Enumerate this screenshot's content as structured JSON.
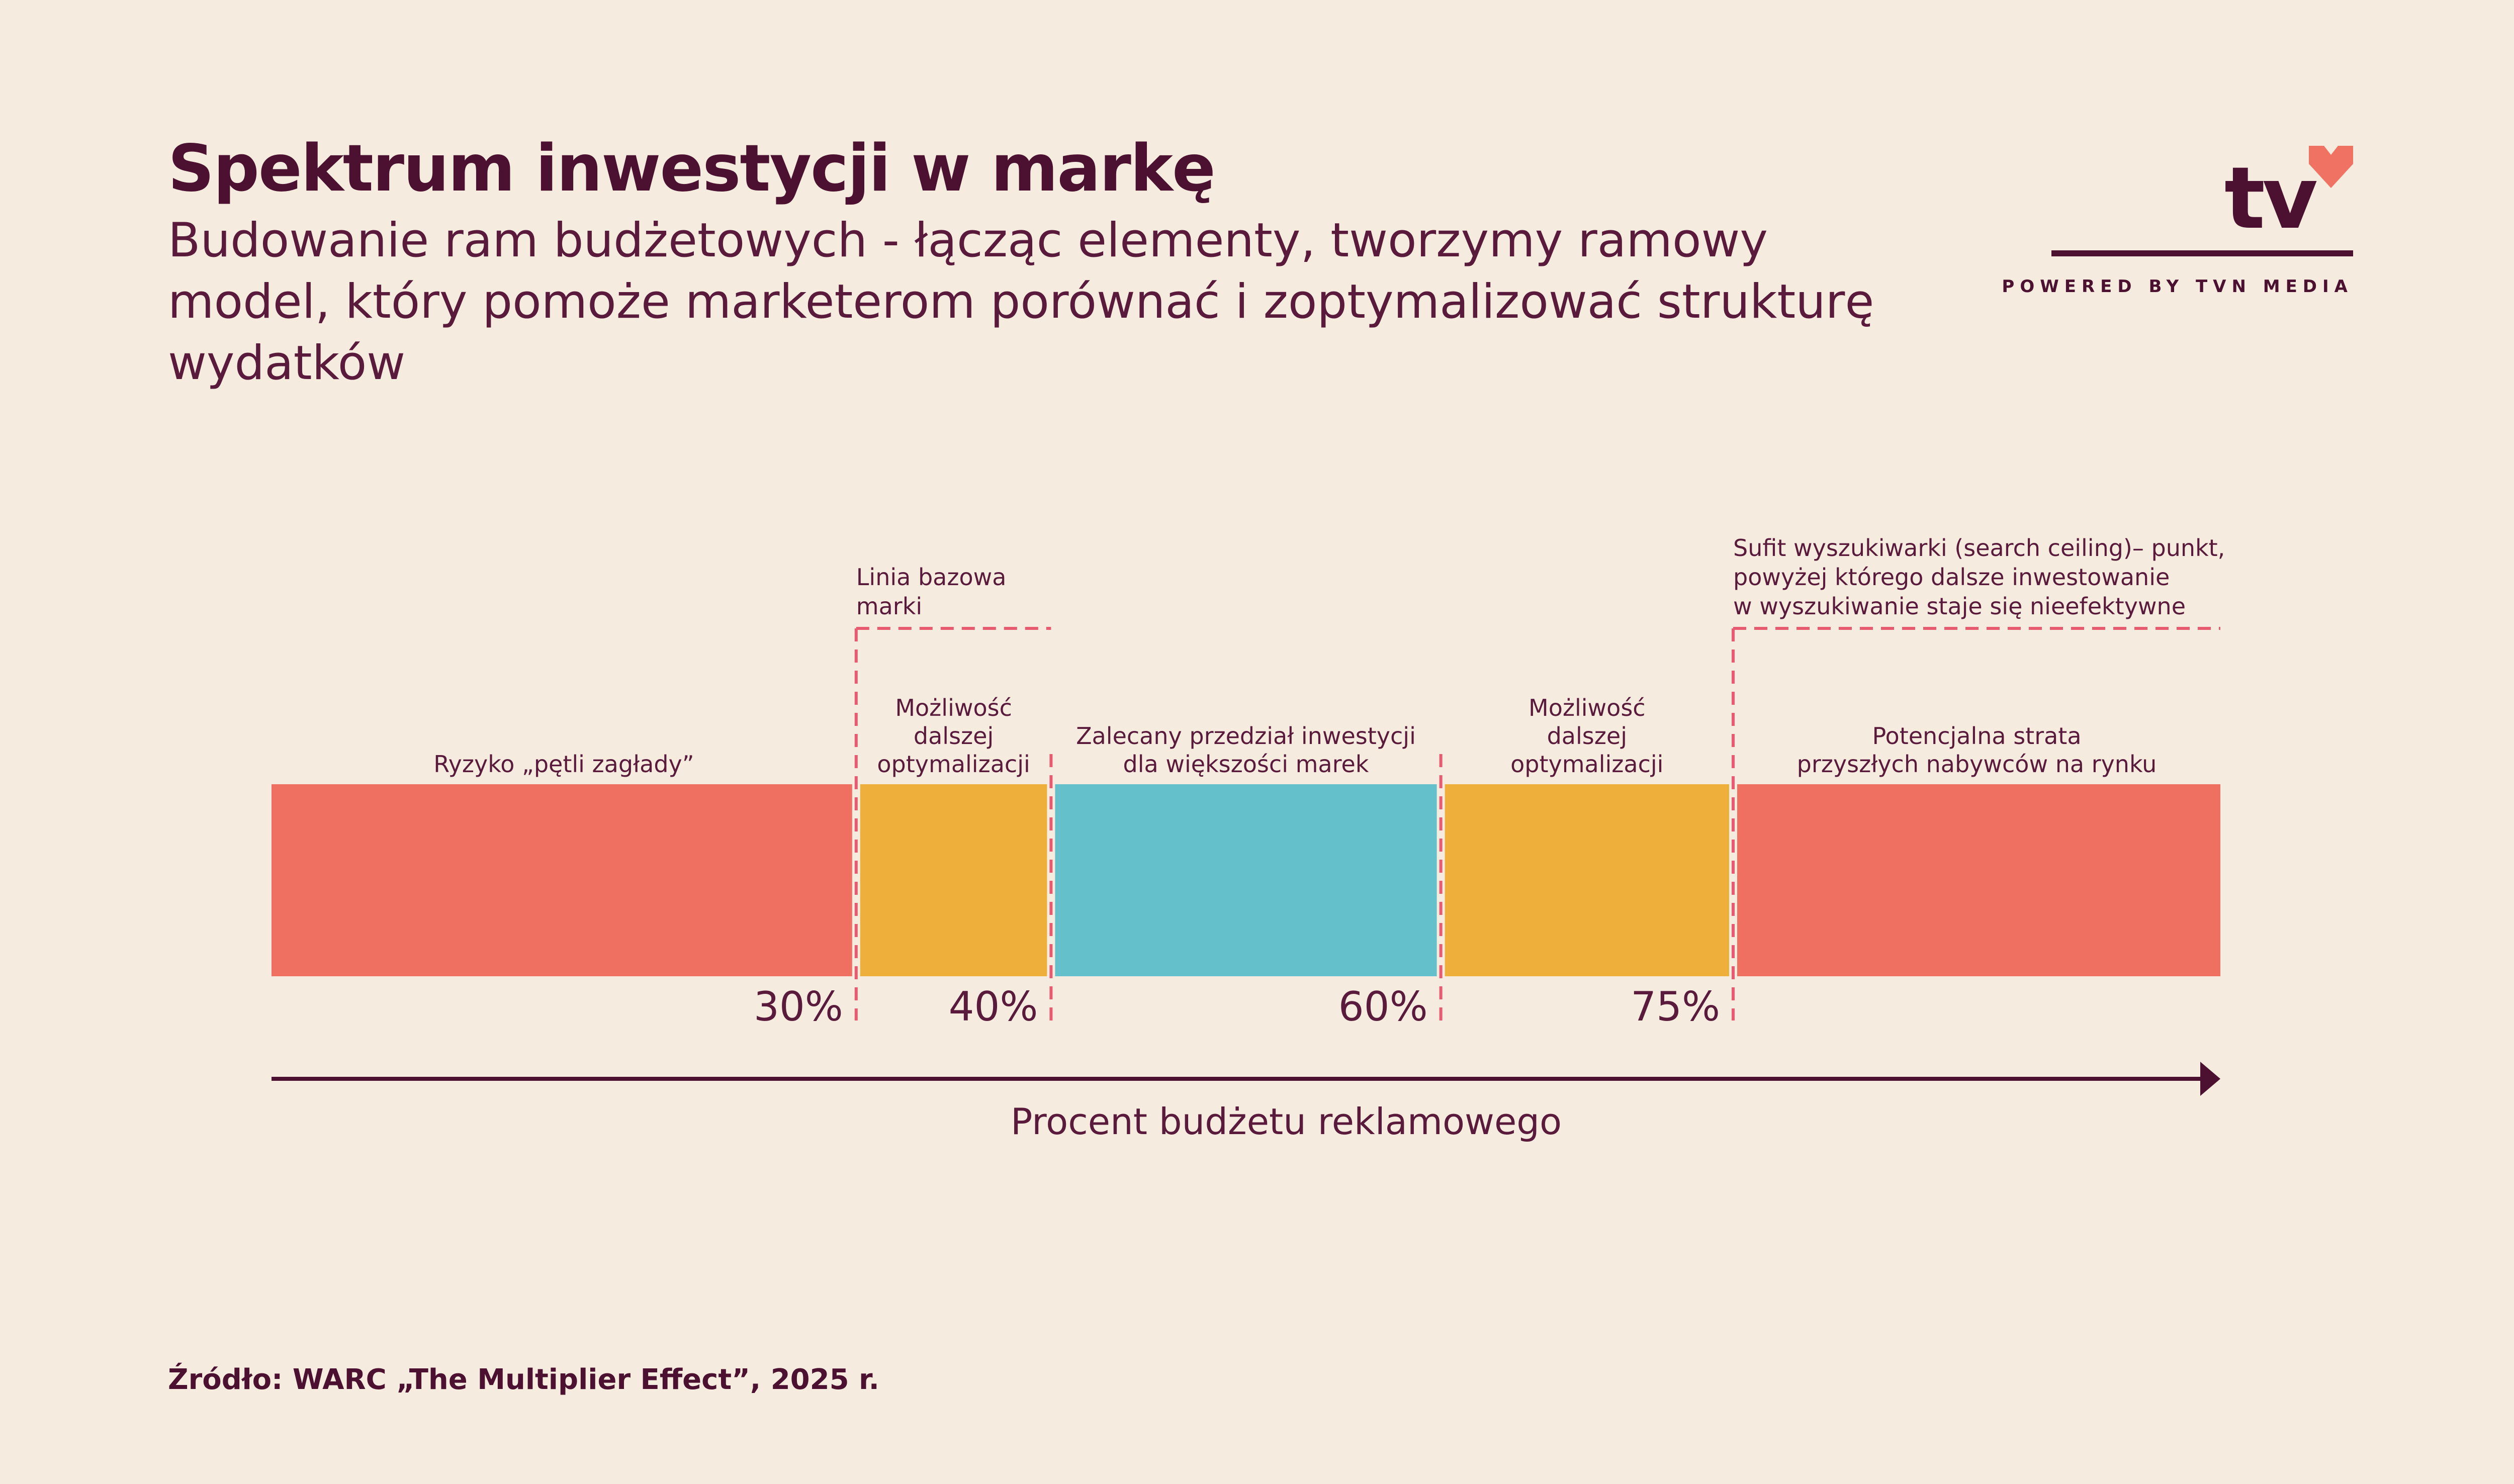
{
  "header": {
    "title": "Spektrum inwestycji w markę",
    "subtitle": "Budowanie ram budżetowych - łącząc elementy, tworzymy ramowy model, który pomoże marketerom porównać i zoptymalizować strukturę wydatków"
  },
  "logo": {
    "text": "tv",
    "tagline": "POWERED BY TVN MEDIA",
    "heart_color": "#f07263"
  },
  "chart_data": {
    "type": "bar",
    "orientation": "horizontal-segmented",
    "xlabel": "Procent budżetu reklamowego",
    "ticks": [
      {
        "value": 30,
        "label": "30%"
      },
      {
        "value": 40,
        "label": "40%"
      },
      {
        "value": 60,
        "label": "60%"
      },
      {
        "value": 75,
        "label": "75%"
      }
    ],
    "segments": [
      {
        "start": 0,
        "end": 30,
        "label": [
          "Ryzyko „pętli zagłady”"
        ],
        "color": "#ef6f61"
      },
      {
        "start": 30,
        "end": 40,
        "label": [
          "Możliwość",
          "dalszej",
          "optymalizacji"
        ],
        "color": "#eeb03b"
      },
      {
        "start": 40,
        "end": 60,
        "label": [
          "Zalecany przedział inwestycji",
          "dla większości marek"
        ],
        "color": "#64c1cb"
      },
      {
        "start": 60,
        "end": 75,
        "label": [
          "Możliwość",
          "dalszej",
          "optymalizacji"
        ],
        "color": "#eeb03b"
      },
      {
        "start": 75,
        "end": 100,
        "label": [
          "Potencjalna strata",
          "przyszłych nabywców na rynku"
        ],
        "color": "#ef6f61"
      }
    ],
    "annotations": [
      {
        "start": 30,
        "end": 40,
        "text": [
          "Linia bazowa",
          "marki"
        ]
      },
      {
        "start": 75,
        "end": 100,
        "text": [
          "Sufit wyszukiwarki (search ceiling)– punkt,",
          "powyżej którego dalsze inwestowanie",
          "w wyszukiwanie staje się nieefektywne"
        ]
      }
    ],
    "dashed_lines_at": [
      30,
      40,
      60,
      75
    ],
    "dashed_color": "#e85a6f"
  },
  "footer": {
    "source": "Źródło: WARC „The Multiplier Effect”, 2025 r."
  }
}
